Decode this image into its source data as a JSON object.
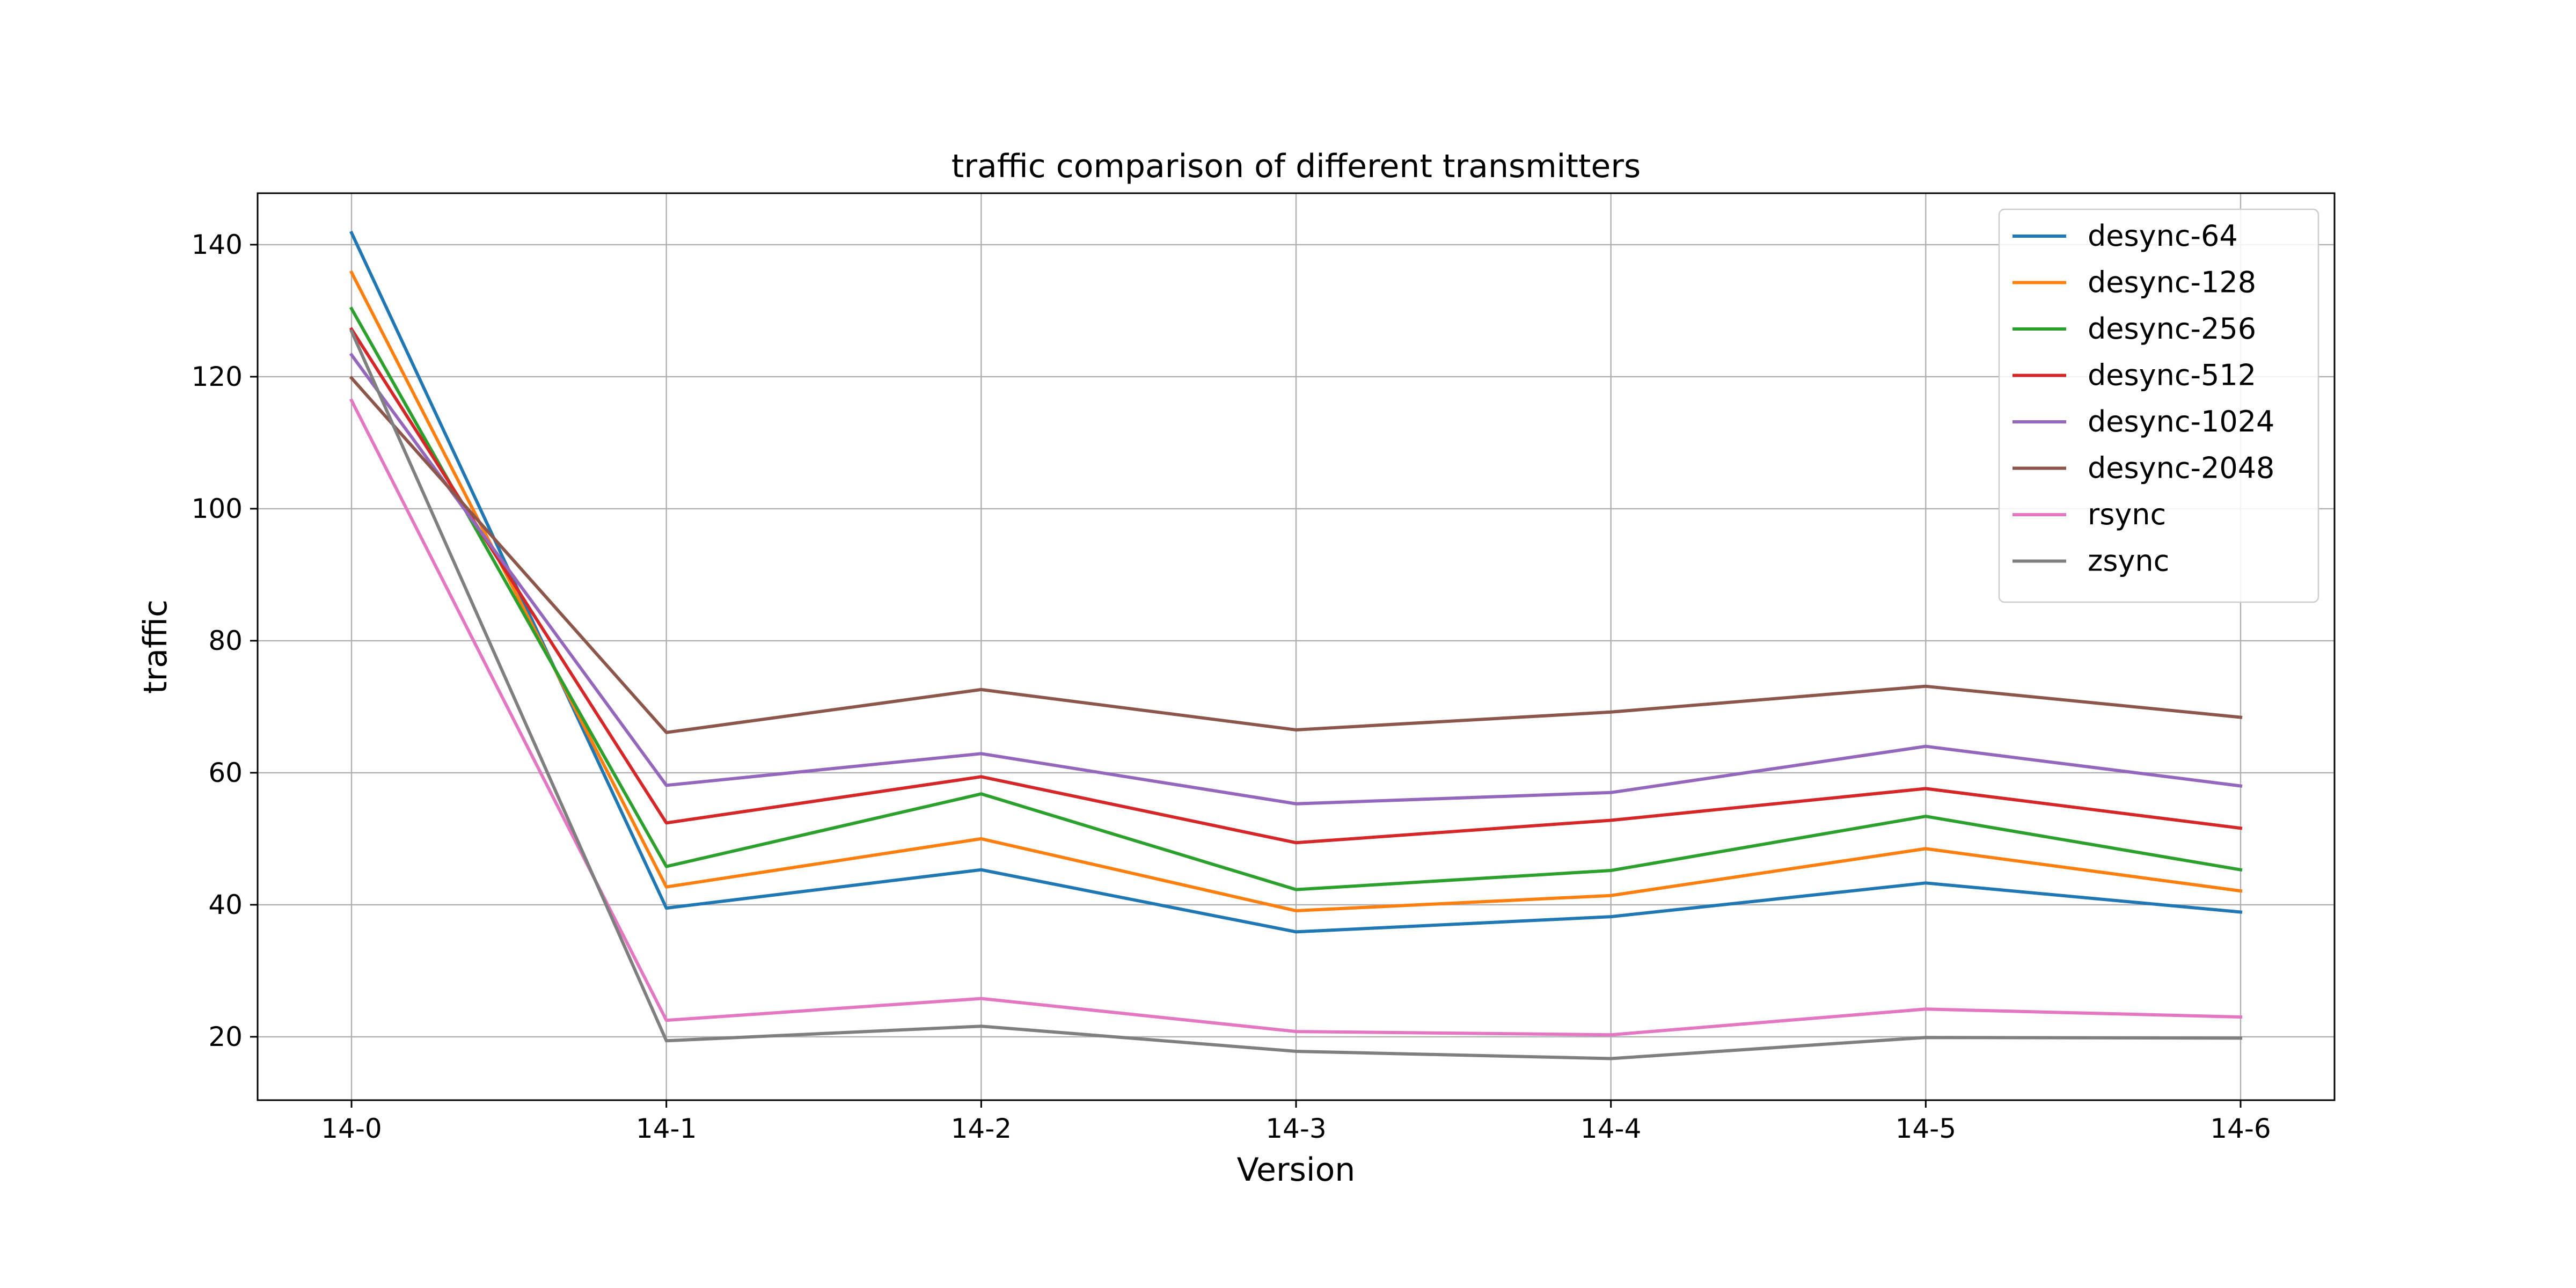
{
  "chart_data": {
    "type": "line",
    "title": "traffic comparison of different transmitters",
    "xlabel": "Version",
    "ylabel": "traffic",
    "categories": [
      "14-0",
      "14-1",
      "14-2",
      "14-3",
      "14-4",
      "14-5",
      "14-6"
    ],
    "yticks": [
      20,
      40,
      60,
      80,
      100,
      120,
      140
    ],
    "ylim": [
      10.4,
      147.8
    ],
    "grid": true,
    "legend_position": "top-right",
    "series": [
      {
        "name": "desync-64",
        "color": "#1f77b4",
        "values": [
          141.8,
          39.5,
          45.3,
          35.9,
          38.2,
          43.3,
          38.9
        ]
      },
      {
        "name": "desync-128",
        "color": "#ff7f0e",
        "values": [
          135.8,
          42.7,
          50.0,
          39.1,
          41.4,
          48.5,
          42.1
        ]
      },
      {
        "name": "desync-256",
        "color": "#2ca02c",
        "values": [
          130.3,
          45.8,
          56.8,
          42.3,
          45.2,
          53.4,
          45.3
        ]
      },
      {
        "name": "desync-512",
        "color": "#d62728",
        "values": [
          127.2,
          52.4,
          59.4,
          49.4,
          52.8,
          57.6,
          51.6
        ]
      },
      {
        "name": "desync-1024",
        "color": "#9467bd",
        "values": [
          123.3,
          58.1,
          62.9,
          55.3,
          57.0,
          64.0,
          58.0
        ]
      },
      {
        "name": "desync-2048",
        "color": "#8c564b",
        "values": [
          119.8,
          66.1,
          72.6,
          66.5,
          69.2,
          73.1,
          68.4
        ]
      },
      {
        "name": "rsync",
        "color": "#e377c2",
        "values": [
          116.4,
          22.5,
          25.8,
          20.8,
          20.3,
          24.2,
          23.0
        ]
      },
      {
        "name": "zsync",
        "color": "#7f7f7f",
        "values": [
          126.9,
          19.4,
          21.6,
          17.8,
          16.7,
          19.9,
          19.8
        ]
      }
    ]
  }
}
